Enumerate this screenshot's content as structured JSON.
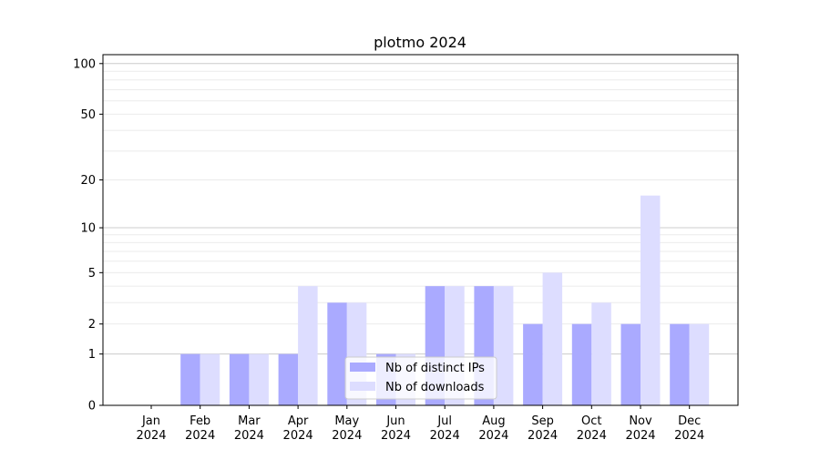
{
  "chart_data": {
    "type": "bar",
    "title": "plotmo 2024",
    "xlabel": "",
    "ylabel": "",
    "yscale": "log10(1+y)",
    "ylim": [
      0,
      113
    ],
    "yticks": [
      0,
      1,
      2,
      5,
      10,
      20,
      50,
      100
    ],
    "grid": true,
    "legend_position": "lower center",
    "categories": [
      "Jan\n2024",
      "Feb\n2024",
      "Mar\n2024",
      "Apr\n2024",
      "May\n2024",
      "Jun\n2024",
      "Jul\n2024",
      "Aug\n2024",
      "Sep\n2024",
      "Oct\n2024",
      "Nov\n2024",
      "Dec\n2024"
    ],
    "series": [
      {
        "name": "Nb of distinct IPs",
        "color": "#aaaaff",
        "values": [
          0,
          1,
          1,
          1,
          3,
          1,
          4,
          4,
          2,
          2,
          2,
          2
        ]
      },
      {
        "name": "Nb of downloads",
        "color": "#ddddff",
        "values": [
          0,
          1,
          1,
          4,
          3,
          1,
          4,
          4,
          5,
          3,
          16,
          2
        ]
      }
    ]
  }
}
